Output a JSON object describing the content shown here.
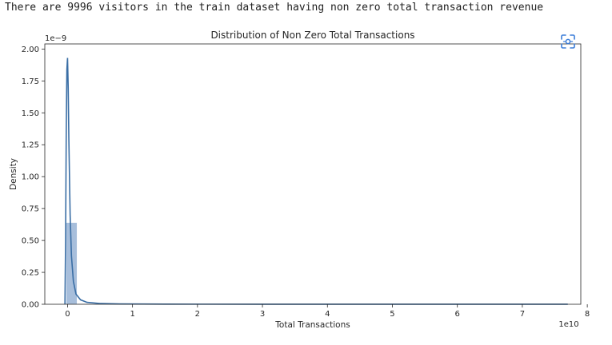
{
  "output_text": "There are 9996 visitors in the train dataset having non zero total transaction revenue",
  "icons": {
    "focus": "focus-expand-icon"
  },
  "colors": {
    "hist": "#a7bedb",
    "kde": "#3a6ea5",
    "axis": "#262626"
  },
  "chart_data": {
    "type": "histogram",
    "title": "Distribution of Non Zero Total Transactions",
    "xlabel": "Total Transactions",
    "ylabel": "Density",
    "x_offset_label": "1e10",
    "y_offset_label": "1e−9",
    "xlim": [
      -0.35,
      7.9
    ],
    "ylim": [
      0,
      2.04
    ],
    "xticks": [
      {
        "value": 0,
        "label": "0"
      },
      {
        "value": 1,
        "label": "1"
      },
      {
        "value": 2,
        "label": "2"
      },
      {
        "value": 3,
        "label": "3"
      },
      {
        "value": 4,
        "label": "4"
      },
      {
        "value": 5,
        "label": "5"
      },
      {
        "value": 6,
        "label": "6"
      },
      {
        "value": 7,
        "label": "7"
      },
      {
        "value": 8,
        "label": "8"
      }
    ],
    "yticks": [
      {
        "value": 0,
        "label": "0.00"
      },
      {
        "value": 0.25,
        "label": "0.25"
      },
      {
        "value": 0.5,
        "label": "0.50"
      },
      {
        "value": 0.75,
        "label": "0.75"
      },
      {
        "value": 1.0,
        "label": "1.00"
      },
      {
        "value": 1.25,
        "label": "1.25"
      },
      {
        "value": 1.5,
        "label": "1.50"
      },
      {
        "value": 1.75,
        "label": "1.75"
      },
      {
        "value": 2.0,
        "label": "2.00"
      }
    ],
    "bins": [
      {
        "x0": -0.02,
        "x1": 0.145,
        "density": 0.64
      },
      {
        "x0": 0.145,
        "x1": 0.31,
        "density": 0.005
      },
      {
        "x0": 0.31,
        "x1": 0.475,
        "density": 0.002
      },
      {
        "x0": 0.475,
        "x1": 0.64,
        "density": 0.001
      }
    ],
    "kde": {
      "x": [
        -0.04,
        -0.03,
        -0.02,
        -0.01,
        0.0,
        0.01,
        0.02,
        0.04,
        0.06,
        0.09,
        0.13,
        0.2,
        0.3,
        0.5,
        0.8,
        1.5,
        3,
        5,
        7.7
      ],
      "y": [
        0,
        0.5,
        1.35,
        1.84,
        1.93,
        1.7,
        1.3,
        0.7,
        0.38,
        0.18,
        0.08,
        0.035,
        0.015,
        0.006,
        0.003,
        0.001,
        0.0005,
        0.0003,
        0.0002
      ]
    }
  }
}
